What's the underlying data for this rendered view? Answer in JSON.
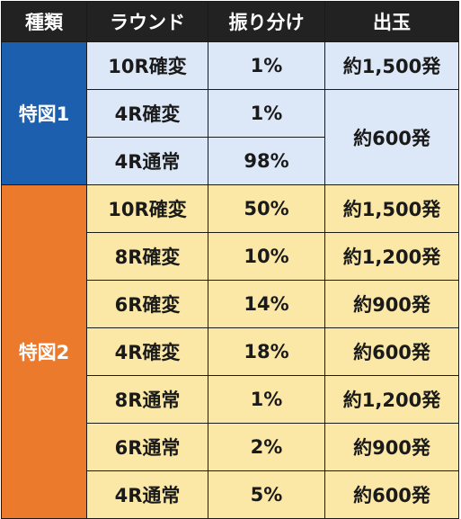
{
  "header": [
    "種類",
    "ラウンド",
    "振り分け",
    "出玉"
  ],
  "groups": [
    {
      "name": "特図1",
      "rows": [
        {
          "round": "10R確変",
          "ratio": "1%",
          "payout": "約1,500発"
        },
        {
          "round": "4R確変",
          "ratio": "1%",
          "payout": "約600発"
        },
        {
          "round": "4R通常",
          "ratio": "98%",
          "payout": null
        }
      ]
    },
    {
      "name": "特図2",
      "rows": [
        {
          "round": "10R確変",
          "ratio": "50%",
          "payout": "約1,500発"
        },
        {
          "round": "8R確変",
          "ratio": "10%",
          "payout": "約1,200発"
        },
        {
          "round": "6R確変",
          "ratio": "14%",
          "payout": "約900発"
        },
        {
          "round": "4R確変",
          "ratio": "18%",
          "payout": "約600発"
        },
        {
          "round": "8R通常",
          "ratio": "1%",
          "payout": "約1,200発"
        },
        {
          "round": "6R通常",
          "ratio": "2%",
          "payout": "約900発"
        },
        {
          "round": "4R通常",
          "ratio": "5%",
          "payout": "約600発"
        }
      ]
    }
  ],
  "colors": {
    "header_bg": "#222222",
    "group1": "#1c5fae",
    "group1_rows": "#dce8f7",
    "group2": "#ec7a2c",
    "group2_rows": "#fbe8a6"
  }
}
